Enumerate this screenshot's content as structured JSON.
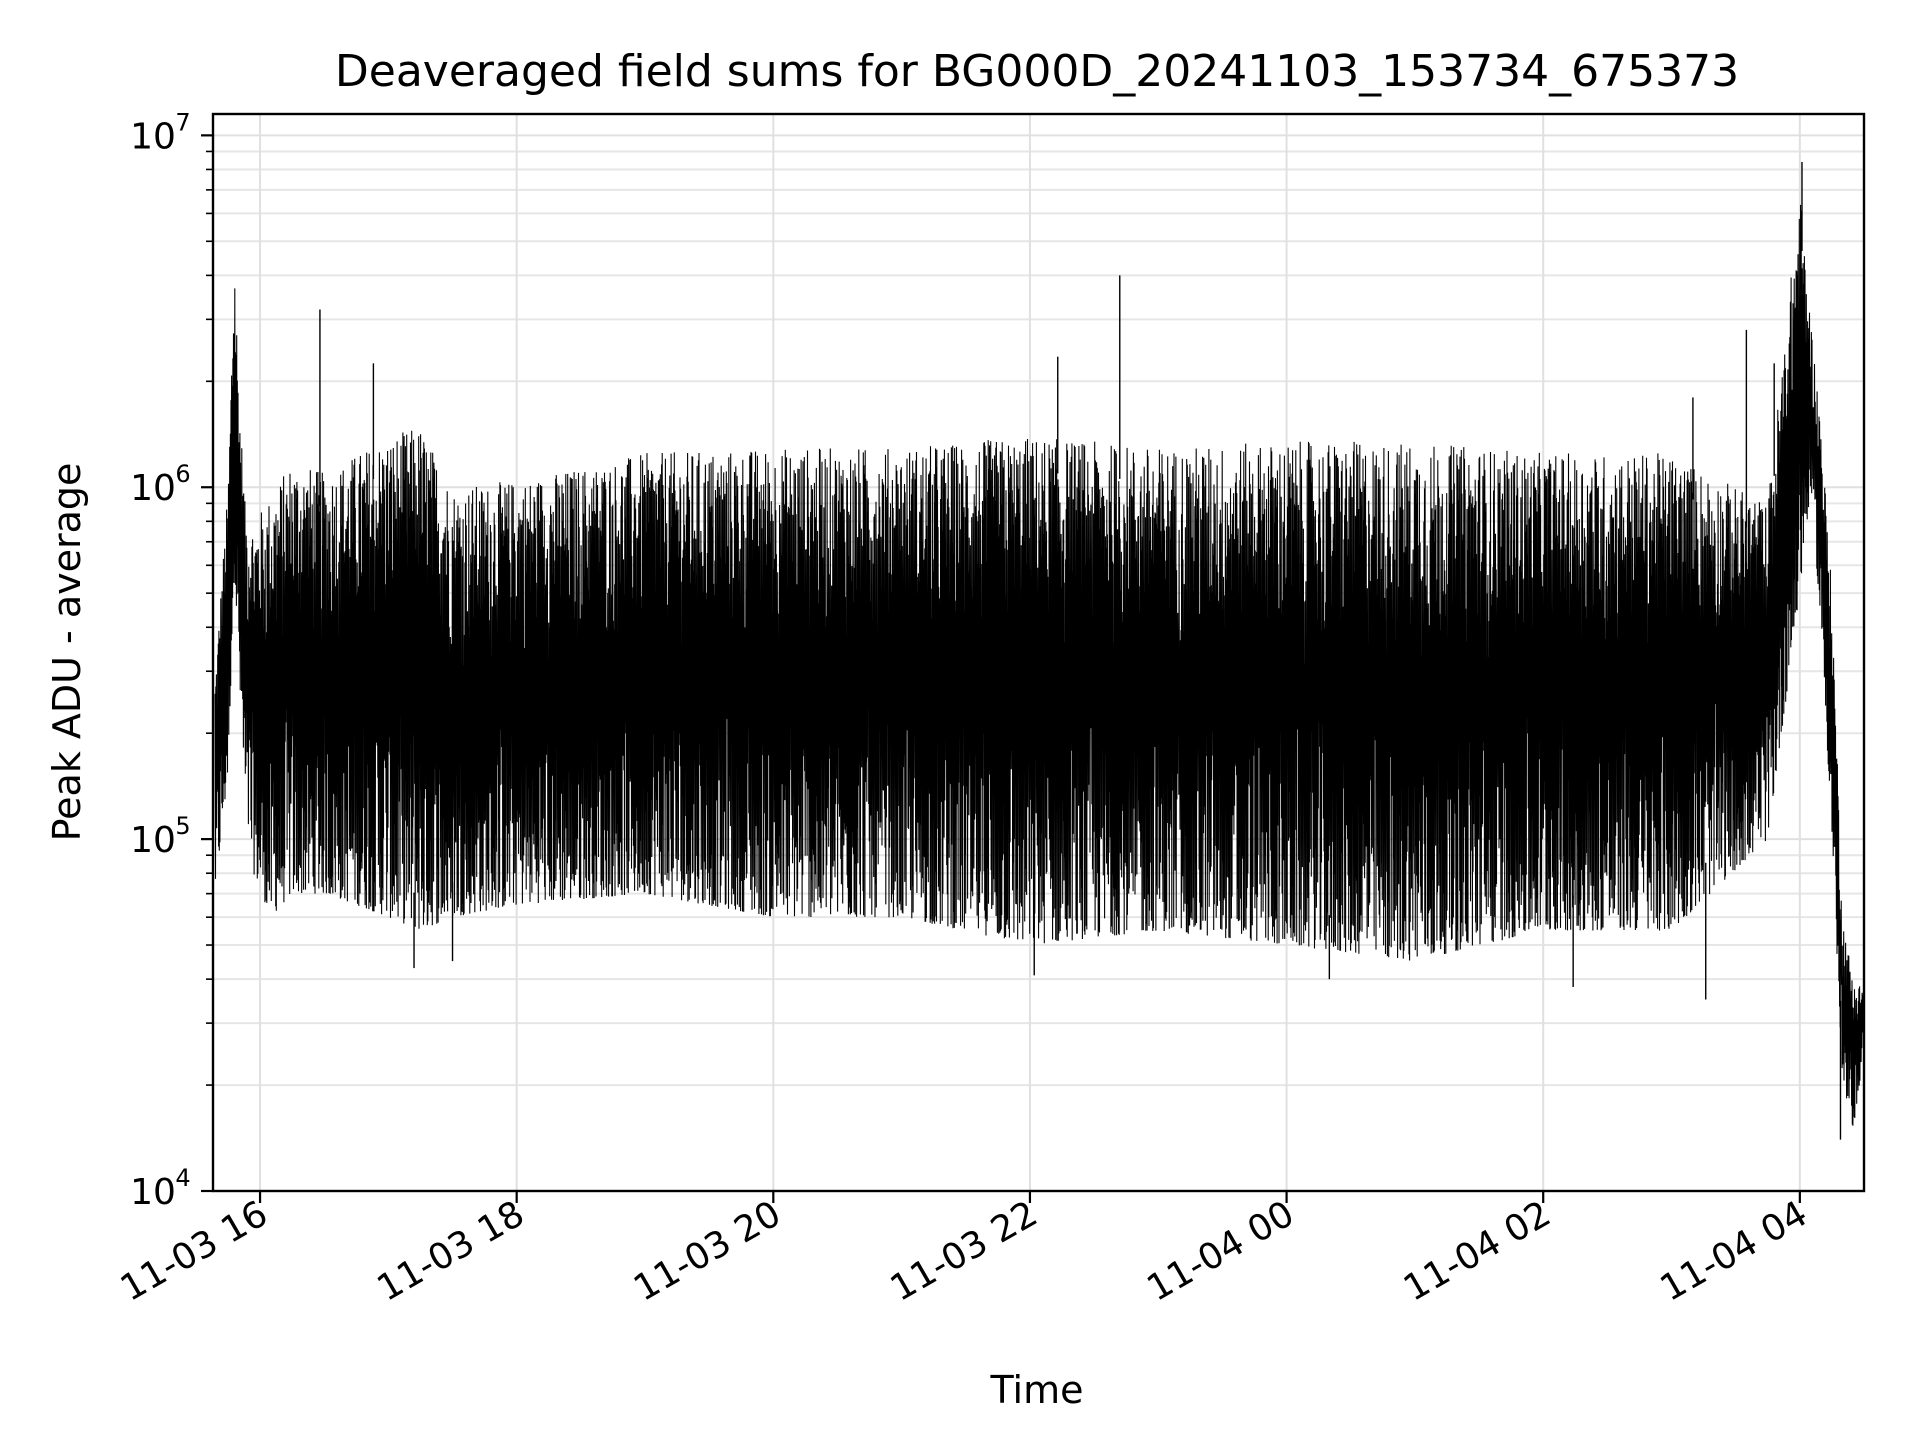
{
  "chart_data": {
    "type": "line",
    "title": "Deaveraged field sums for BG000D_20241103_153734_675373",
    "xlabel": "Time",
    "ylabel": "Peak ADU - average",
    "yscale": "log",
    "ylim": [
      10000,
      11500000
    ],
    "xlim": [
      "11-03 15:38",
      "11-04 04:30"
    ],
    "x_ticks": [
      "11-03 16",
      "11-03 18",
      "11-03 20",
      "11-03 22",
      "11-04 00",
      "11-04 02",
      "11-04 04"
    ],
    "y_ticks": [
      {
        "base": "10",
        "exp": "4",
        "value": 10000
      },
      {
        "base": "10",
        "exp": "5",
        "value": 100000
      },
      {
        "base": "10",
        "exp": "6",
        "value": 1000000
      },
      {
        "base": "10",
        "exp": "7",
        "value": 10000000
      }
    ],
    "grid": true,
    "line_color": "#000000",
    "series": [
      {
        "values_note_free": true,
        "x": [
          "11-03 15:39",
          "11-03 15:45",
          "11-03 15:48",
          "11-03 15:50",
          "11-03 15:53",
          "11-03 15:57",
          "11-03 16:05",
          "11-03 16:15",
          "11-03 16:30",
          "11-03 16:45",
          "11-03 17:00",
          "11-03 17:15",
          "11-03 17:30",
          "11-03 18:00",
          "11-03 19:00",
          "11-03 20:00",
          "11-03 21:00",
          "11-03 22:00",
          "11-03 23:00",
          "11-04 00:00",
          "11-04 01:00",
          "11-04 02:00",
          "11-04 03:00",
          "11-04 03:45",
          "11-04 04:00",
          "11-04 04:05",
          "11-04 04:10",
          "11-04 04:15",
          "11-04 04:20",
          "11-04 04:25",
          "11-04 04:30"
        ],
        "envelope_high": [
          300000,
          1000000,
          4900000,
          2000000,
          900000,
          800000,
          950000,
          1200000,
          1100000,
          1250000,
          1400000,
          1500000,
          1000000,
          1050000,
          1250000,
          1300000,
          1300000,
          1400000,
          1300000,
          1350000,
          1350000,
          1250000,
          1250000,
          900000,
          7000000,
          3000000,
          1500000,
          500000,
          60000,
          40000,
          38000
        ],
        "envelope_low": [
          70000,
          150000,
          600000,
          300000,
          120000,
          80000,
          60000,
          70000,
          70000,
          65000,
          60000,
          55000,
          60000,
          65000,
          70000,
          60000,
          60000,
          50000,
          55000,
          50000,
          45000,
          55000,
          55000,
          100000,
          500000,
          1000000,
          400000,
          100000,
          20000,
          15000,
          25000
        ]
      }
    ],
    "spikes": [
      {
        "x": "11-03 16:28",
        "y": 3200000
      },
      {
        "x": "11-03 16:53",
        "y": 2250000
      },
      {
        "x": "11-03 22:13",
        "y": 2350000
      },
      {
        "x": "11-03 22:42",
        "y": 4000000
      },
      {
        "x": "11-04 03:10",
        "y": 1800000
      },
      {
        "x": "11-04 03:35",
        "y": 2800000
      },
      {
        "x": "11-04 03:48",
        "y": 2250000
      },
      {
        "x": "11-04 04:01",
        "y": 8400000
      }
    ],
    "dips": [
      {
        "x": "11-03 17:12",
        "y": 43000
      },
      {
        "x": "11-03 17:30",
        "y": 45000
      },
      {
        "x": "11-03 22:02",
        "y": 41000
      },
      {
        "x": "11-04 00:20",
        "y": 40000
      },
      {
        "x": "11-04 02:14",
        "y": 38000
      },
      {
        "x": "11-04 03:16",
        "y": 35000
      },
      {
        "x": "11-04 04:19",
        "y": 14000
      }
    ]
  }
}
